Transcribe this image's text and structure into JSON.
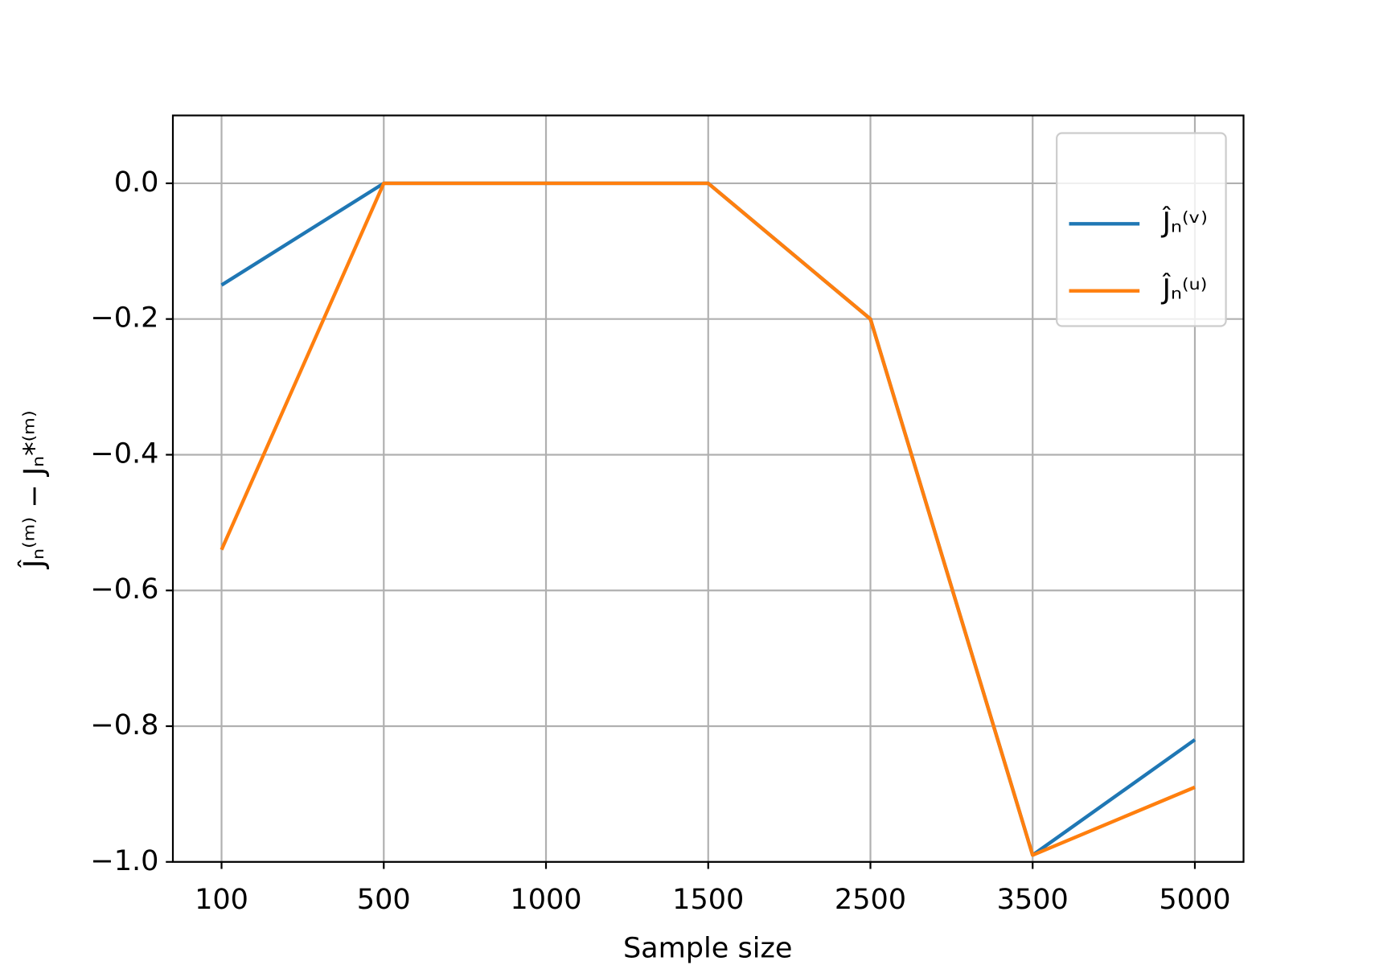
{
  "chart_data": {
    "type": "line",
    "x_label": "Sample size",
    "y_label": "Ĵₙ⁽ᵐ⁾ − Jₙ*⁽ᵐ⁾",
    "categories": [
      "100",
      "500",
      "1000",
      "1500",
      "2500",
      "3500",
      "5000"
    ],
    "series": [
      {
        "name": "Ĵₙ⁽ᵛ⁾",
        "color": "#1f77b4",
        "values": [
          -0.15,
          0,
          0,
          0,
          -0.2,
          -0.99,
          -0.82
        ]
      },
      {
        "name": "Ĵₙ⁽ᵘ⁾",
        "color": "#ff7f0e",
        "values": [
          -0.54,
          0,
          0,
          0,
          -0.2,
          -0.99,
          -0.89
        ]
      }
    ],
    "ylim": [
      -1.0,
      0.1
    ],
    "yticks": [
      {
        "value": -1.0,
        "label": "−1.0"
      },
      {
        "value": -0.8,
        "label": "−0.8"
      },
      {
        "value": -0.6,
        "label": "−0.6"
      },
      {
        "value": -0.4,
        "label": "−0.4"
      },
      {
        "value": -0.2,
        "label": "−0.2"
      },
      {
        "value": 0,
        "label": "0.0"
      }
    ],
    "grid": true,
    "legend_position": "upper right"
  }
}
